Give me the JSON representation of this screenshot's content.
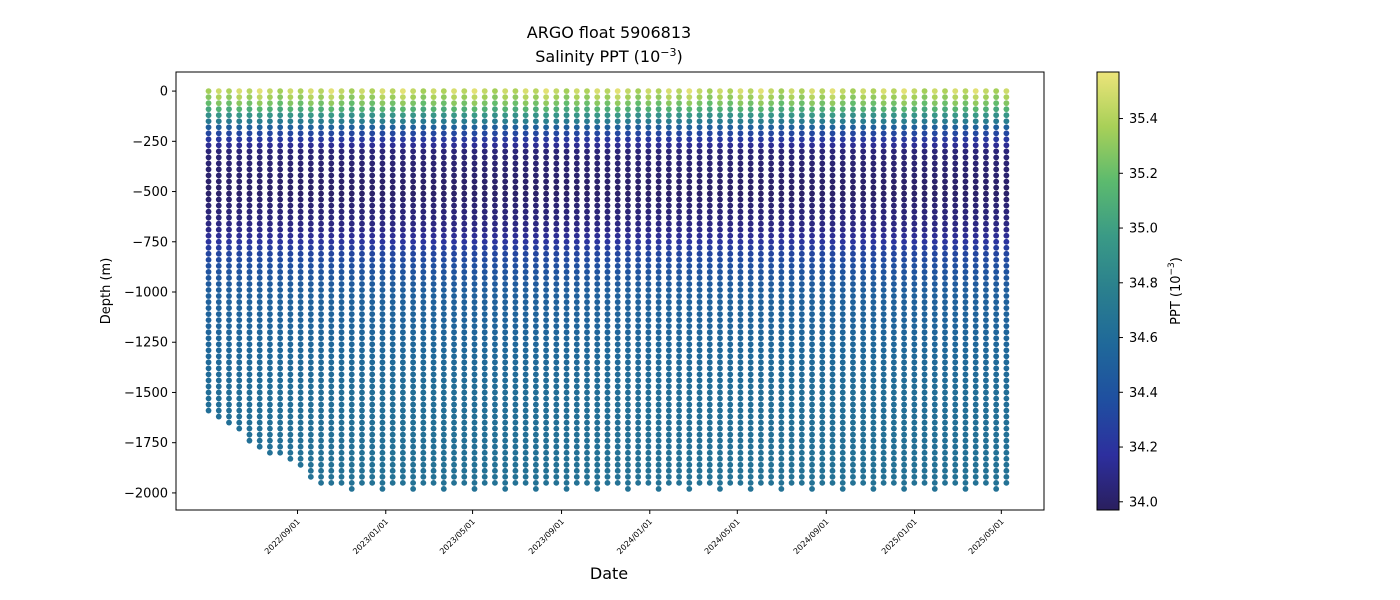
{
  "chart_data": {
    "type": "scatter",
    "title": "ARGO float 5906813",
    "subtitle_prefix": "Salinity PPT (10",
    "subtitle_exp": "−3",
    "subtitle_suffix": ")",
    "xlabel": "Date",
    "ylabel": "Depth (m)",
    "ylim": [
      -2085,
      95
    ],
    "yticks": [
      0,
      -250,
      -500,
      -750,
      -1000,
      -1250,
      -1500,
      -1750,
      -2000
    ],
    "ytick_labels": [
      "0",
      "−250",
      "−500",
      "−750",
      "−1000",
      "−1250",
      "−1500",
      "−1750",
      "−2000"
    ],
    "xlim": [
      "2022-03-17",
      "2025-06-29"
    ],
    "xticks": [
      "2022-09-01",
      "2023-01-01",
      "2023-05-01",
      "2023-09-01",
      "2024-01-01",
      "2024-05-01",
      "2024-09-01",
      "2025-01-01",
      "2025-05-01"
    ],
    "xtick_labels": [
      "2022/09/01",
      "2023/01/01",
      "2023/05/01",
      "2023/09/01",
      "2024/01/01",
      "2024/05/01",
      "2024/09/01",
      "2025/01/01",
      "2025/05/01"
    ],
    "profiles": {
      "first_date": "2022-05-01",
      "last_date": "2025-05-08",
      "count": 79,
      "interval_days": 14.2,
      "first_max_depths": [
        1600,
        1630,
        1670,
        1700,
        1740,
        1770,
        1800,
        1820,
        1850,
        1880,
        1920,
        1950
      ],
      "typical_max_depth": 1975
    },
    "salinity_profile": {
      "depths": [
        0,
        50,
        100,
        150,
        200,
        300,
        500,
        700,
        800,
        1000,
        1500,
        2000
      ],
      "values": [
        35.45,
        35.3,
        35.05,
        34.75,
        34.35,
        34.05,
        34.0,
        34.1,
        34.3,
        34.5,
        34.62,
        34.66
      ]
    },
    "colorbar": {
      "label_prefix": "PPT (10",
      "label_exp": "−3",
      "label_suffix": ")",
      "vmin": 33.97,
      "vmax": 35.57,
      "ticks": [
        34.0,
        34.2,
        34.4,
        34.6,
        34.8,
        35.0,
        35.2,
        35.4
      ],
      "tick_labels": [
        "34.0",
        "34.2",
        "34.4",
        "34.6",
        "34.8",
        "35.0",
        "35.2",
        "35.4"
      ],
      "colormap": [
        "#2a1f5e",
        "#2d2f9e",
        "#1f4fa0",
        "#1f689a",
        "#2a7f8e",
        "#3a9a86",
        "#5cba6e",
        "#a8d058",
        "#ece47a"
      ]
    }
  }
}
